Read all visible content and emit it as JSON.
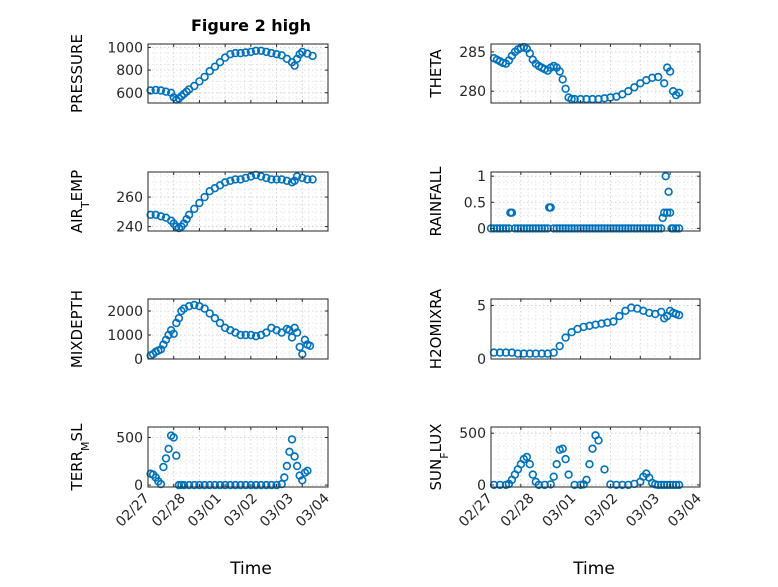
{
  "figure": {
    "title": "Figure 2 high",
    "xlabel": "Time",
    "marker_color": "#0072BD",
    "x_ticks": [
      "02/27",
      "02/28",
      "03/01",
      "03/02",
      "03/03",
      "03/04"
    ]
  },
  "chart_data": [
    {
      "type": "scatter",
      "ylabel": "PRESSURE",
      "ylabel_parts": [
        "PRESSURE"
      ],
      "xlim": [
        0,
        7
      ],
      "ylim": [
        510,
        1030
      ],
      "yticks": [
        600,
        800,
        1000
      ],
      "grid": true,
      "series": [
        {
          "x": [
            0.1,
            0.3,
            0.5,
            0.7,
            0.9,
            1.0,
            1.1,
            1.2,
            1.3,
            1.4,
            1.5,
            1.6,
            1.8,
            2.0,
            2.2,
            2.4,
            2.6,
            2.8,
            3.0,
            3.2,
            3.4,
            3.6,
            3.8,
            4.0,
            4.2,
            4.4,
            4.6,
            4.8,
            5.0,
            5.2,
            5.4,
            5.6,
            5.7,
            5.8,
            5.9,
            6.0,
            6.2,
            6.4
          ],
          "y": [
            620,
            625,
            620,
            610,
            600,
            560,
            540,
            550,
            570,
            590,
            610,
            630,
            660,
            700,
            740,
            790,
            830,
            870,
            910,
            940,
            950,
            950,
            955,
            960,
            970,
            970,
            960,
            950,
            940,
            930,
            900,
            870,
            840,
            900,
            940,
            960,
            945,
            925
          ]
        }
      ]
    },
    {
      "type": "scatter",
      "ylabel": "THETA",
      "ylabel_parts": [
        "THETA"
      ],
      "xlim": [
        0,
        7
      ],
      "ylim": [
        278.5,
        286
      ],
      "yticks": [
        280,
        285
      ],
      "grid": true,
      "series": [
        {
          "x": [
            0.1,
            0.2,
            0.3,
            0.4,
            0.5,
            0.6,
            0.7,
            0.8,
            0.9,
            1.0,
            1.1,
            1.2,
            1.3,
            1.4,
            1.5,
            1.6,
            1.7,
            1.8,
            1.9,
            2.0,
            2.1,
            2.2,
            2.3,
            2.4,
            2.5,
            2.6,
            2.7,
            2.8,
            3.0,
            3.2,
            3.4,
            3.6,
            3.8,
            4.0,
            4.2,
            4.4,
            4.6,
            4.8,
            5.0,
            5.2,
            5.4,
            5.6,
            5.8,
            5.9,
            6.0,
            6.1,
            6.2,
            6.3
          ],
          "y": [
            284.2,
            284.0,
            283.8,
            283.6,
            283.5,
            283.9,
            284.5,
            285.0,
            285.3,
            285.5,
            285.6,
            285.4,
            284.8,
            284.0,
            283.5,
            283.2,
            283.0,
            282.8,
            282.6,
            283.0,
            283.2,
            283.0,
            282.5,
            281.5,
            280.3,
            279.2,
            279.0,
            279.0,
            279.0,
            279.0,
            279.0,
            279.0,
            279.1,
            279.2,
            279.3,
            279.6,
            280.0,
            280.5,
            281.0,
            281.4,
            281.7,
            281.8,
            281.0,
            283.0,
            282.5,
            280.0,
            279.5,
            279.8
          ]
        }
      ]
    },
    {
      "type": "scatter",
      "ylabel": "AIR_TEMP",
      "ylabel_parts": [
        "AIR",
        "T",
        "EMP"
      ],
      "xlim": [
        0,
        7
      ],
      "ylim": [
        237,
        277
      ],
      "yticks": [
        240,
        260
      ],
      "grid": true,
      "series": [
        {
          "x": [
            0.1,
            0.3,
            0.5,
            0.7,
            0.9,
            1.0,
            1.1,
            1.2,
            1.3,
            1.4,
            1.5,
            1.6,
            1.8,
            2.0,
            2.2,
            2.4,
            2.6,
            2.8,
            3.0,
            3.2,
            3.4,
            3.6,
            3.8,
            4.0,
            4.2,
            4.4,
            4.6,
            4.8,
            5.0,
            5.2,
            5.4,
            5.6,
            5.7,
            5.8,
            6.0,
            6.2,
            6.4
          ],
          "y": [
            248,
            248,
            247,
            246,
            244,
            242,
            240,
            239,
            240,
            242,
            245,
            248,
            252,
            256,
            260,
            264,
            266,
            268,
            270,
            271,
            272,
            272,
            273,
            274,
            275,
            274,
            273,
            272,
            272,
            272,
            271,
            270,
            271,
            274,
            273,
            272,
            272
          ]
        }
      ]
    },
    {
      "type": "scatter",
      "ylabel": "RAINFALL",
      "ylabel_parts": [
        "RAINFALL"
      ],
      "xlim": [
        0,
        7
      ],
      "ylim": [
        -0.05,
        1.08
      ],
      "yticks": [
        0,
        0.5,
        1
      ],
      "grid": true,
      "series": [
        {
          "x": [
            0.0,
            0.1,
            0.2,
            0.3,
            0.4,
            0.5,
            0.6,
            0.65,
            0.7,
            0.8,
            0.9,
            1.0,
            1.1,
            1.2,
            1.3,
            1.4,
            1.5,
            1.6,
            1.7,
            1.8,
            1.9,
            1.95,
            2.0,
            2.1,
            2.2,
            2.3,
            2.4,
            2.5,
            2.6,
            2.7,
            2.8,
            2.9,
            3.0,
            3.1,
            3.2,
            3.3,
            3.4,
            3.5,
            3.6,
            3.7,
            3.8,
            3.9,
            4.0,
            4.1,
            4.2,
            4.3,
            4.4,
            4.5,
            4.6,
            4.7,
            4.8,
            4.9,
            5.0,
            5.1,
            5.2,
            5.3,
            5.4,
            5.5,
            5.6,
            5.7,
            5.75,
            5.8,
            5.85,
            5.9,
            5.95,
            6.0,
            6.05,
            6.1,
            6.2,
            6.3
          ],
          "y": [
            0,
            0,
            0,
            0,
            0,
            0,
            0,
            0.3,
            0.3,
            0,
            0,
            0,
            0,
            0,
            0,
            0,
            0,
            0,
            0,
            0,
            0,
            0.4,
            0.4,
            0,
            0,
            0,
            0,
            0,
            0,
            0,
            0,
            0,
            0,
            0,
            0,
            0,
            0,
            0,
            0,
            0,
            0,
            0,
            0,
            0,
            0,
            0,
            0,
            0,
            0,
            0,
            0,
            0,
            0,
            0,
            0,
            0,
            0,
            0,
            0,
            0,
            0.2,
            0.3,
            1.0,
            0.3,
            0.7,
            0.3,
            0,
            0,
            0,
            0
          ]
        }
      ]
    },
    {
      "type": "scatter",
      "ylabel": "MIXDEPTH",
      "ylabel_parts": [
        "MIXDEPTH"
      ],
      "xlim": [
        0,
        7
      ],
      "ylim": [
        0,
        2500
      ],
      "yticks": [
        0,
        1000,
        2000
      ],
      "grid": true,
      "series": [
        {
          "x": [
            0.1,
            0.2,
            0.3,
            0.4,
            0.5,
            0.6,
            0.7,
            0.8,
            0.9,
            1.0,
            1.1,
            1.2,
            1.3,
            1.4,
            1.6,
            1.8,
            2.0,
            2.2,
            2.4,
            2.6,
            2.8,
            3.0,
            3.2,
            3.4,
            3.6,
            3.8,
            4.0,
            4.2,
            4.4,
            4.6,
            4.8,
            5.0,
            5.2,
            5.4,
            5.5,
            5.6,
            5.7,
            5.8,
            5.9,
            6.0,
            6.1,
            6.2,
            6.3
          ],
          "y": [
            150,
            200,
            300,
            350,
            400,
            600,
            800,
            1000,
            1200,
            1050,
            1500,
            1700,
            2000,
            2100,
            2200,
            2250,
            2200,
            2100,
            1900,
            1700,
            1500,
            1300,
            1200,
            1100,
            1000,
            1000,
            1000,
            950,
            1000,
            1100,
            1300,
            1200,
            1100,
            1250,
            1200,
            900,
            1300,
            1100,
            500,
            200,
            800,
            600,
            550
          ]
        }
      ]
    },
    {
      "type": "scatter",
      "ylabel": "H2OMIXRA",
      "ylabel_parts": [
        "H2OMIXRA"
      ],
      "xlim": [
        0,
        7
      ],
      "ylim": [
        0,
        5.6
      ],
      "yticks": [
        0,
        5
      ],
      "grid": true,
      "series": [
        {
          "x": [
            0.1,
            0.3,
            0.5,
            0.7,
            0.9,
            1.1,
            1.3,
            1.5,
            1.7,
            1.9,
            2.1,
            2.3,
            2.5,
            2.7,
            2.9,
            3.1,
            3.3,
            3.5,
            3.7,
            3.9,
            4.1,
            4.3,
            4.5,
            4.7,
            4.9,
            5.1,
            5.3,
            5.5,
            5.7,
            5.8,
            5.9,
            6.0,
            6.1,
            6.2,
            6.3
          ],
          "y": [
            0.6,
            0.6,
            0.6,
            0.6,
            0.5,
            0.5,
            0.5,
            0.5,
            0.5,
            0.5,
            0.6,
            1.2,
            2.0,
            2.5,
            2.8,
            3.0,
            3.1,
            3.2,
            3.3,
            3.4,
            3.5,
            4.0,
            4.5,
            4.8,
            4.7,
            4.5,
            4.3,
            4.2,
            4.4,
            3.8,
            4.0,
            4.5,
            4.3,
            4.2,
            4.1
          ]
        }
      ]
    },
    {
      "type": "scatter",
      "ylabel": "TERR_MSL",
      "ylabel_parts": [
        "TERR",
        "M",
        "SL"
      ],
      "xlim": [
        0,
        7
      ],
      "ylim": [
        -20,
        610
      ],
      "yticks": [
        0,
        500
      ],
      "grid": true,
      "series": [
        {
          "x": [
            0.1,
            0.2,
            0.3,
            0.4,
            0.5,
            0.6,
            0.7,
            0.8,
            0.9,
            1.0,
            1.1,
            1.2,
            1.3,
            1.4,
            1.6,
            1.8,
            2.0,
            2.2,
            2.4,
            2.6,
            2.8,
            3.0,
            3.2,
            3.4,
            3.6,
            3.8,
            4.0,
            4.2,
            4.4,
            4.6,
            4.8,
            5.0,
            5.2,
            5.3,
            5.4,
            5.5,
            5.6,
            5.7,
            5.8,
            5.9,
            6.0,
            6.1,
            6.2
          ],
          "y": [
            120,
            110,
            80,
            40,
            10,
            190,
            280,
            380,
            520,
            500,
            310,
            0,
            0,
            0,
            0,
            0,
            0,
            0,
            0,
            0,
            0,
            0,
            0,
            0,
            0,
            0,
            0,
            0,
            0,
            0,
            0,
            0,
            10,
            80,
            200,
            350,
            480,
            300,
            200,
            100,
            50,
            130,
            150
          ]
        }
      ]
    },
    {
      "type": "scatter",
      "ylabel": "SUN_FLUX",
      "ylabel_parts": [
        "SUN",
        "F",
        "LUX"
      ],
      "xlim": [
        0,
        7
      ],
      "ylim": [
        -20,
        560
      ],
      "yticks": [
        0,
        500
      ],
      "grid": true,
      "series": [
        {
          "x": [
            0.1,
            0.3,
            0.5,
            0.6,
            0.7,
            0.8,
            0.9,
            1.0,
            1.1,
            1.2,
            1.3,
            1.4,
            1.5,
            1.6,
            1.8,
            2.0,
            2.1,
            2.2,
            2.3,
            2.4,
            2.5,
            2.6,
            2.8,
            3.0,
            3.1,
            3.2,
            3.3,
            3.4,
            3.5,
            3.6,
            3.8,
            4.0,
            4.2,
            4.4,
            4.6,
            4.8,
            5.0,
            5.1,
            5.2,
            5.3,
            5.4,
            5.5,
            5.6,
            5.7,
            5.8,
            5.9,
            6.0,
            6.1,
            6.2,
            6.3
          ],
          "y": [
            0,
            0,
            0,
            10,
            50,
            100,
            150,
            200,
            250,
            270,
            200,
            100,
            30,
            0,
            0,
            5,
            80,
            200,
            340,
            350,
            250,
            100,
            0,
            0,
            5,
            50,
            200,
            350,
            480,
            430,
            150,
            5,
            0,
            0,
            0,
            10,
            30,
            80,
            110,
            70,
            20,
            5,
            0,
            0,
            0,
            0,
            0,
            0,
            0,
            0
          ]
        }
      ]
    }
  ]
}
